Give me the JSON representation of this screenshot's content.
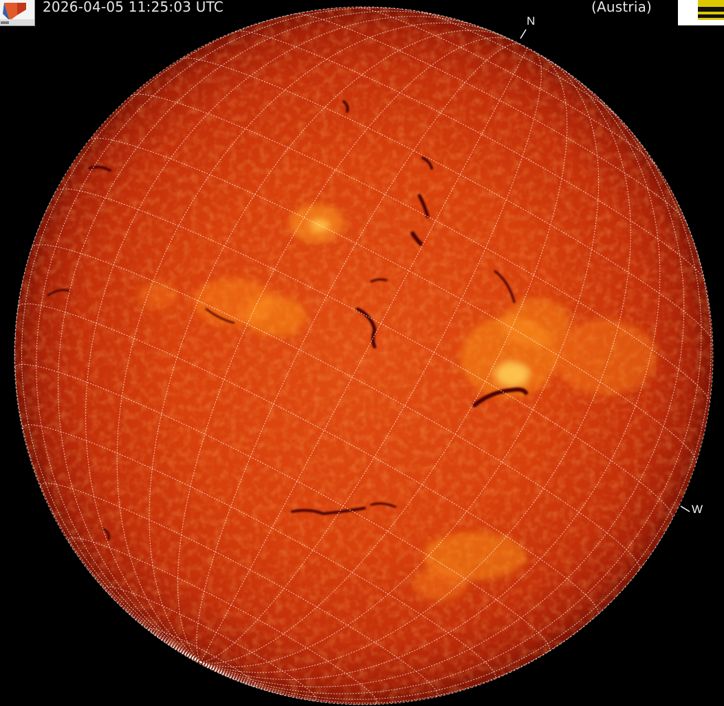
{
  "header": {
    "timestamp": "2026-04-05 11:25:03 UTC",
    "location": "(Austria)"
  },
  "compass": {
    "north": "N",
    "west": "W"
  },
  "logos": {
    "left_icon": "observatory-logo-icon",
    "right_icon": "institution-logo-icon"
  },
  "image": {
    "subject": "sun-disk",
    "colors": {
      "background": "#000000",
      "disk_center": "#e04a10",
      "disk_limb": "#8a1606",
      "plage": "#ffb21e",
      "filament": "#4a0505",
      "grid": "#ffffff"
    }
  }
}
